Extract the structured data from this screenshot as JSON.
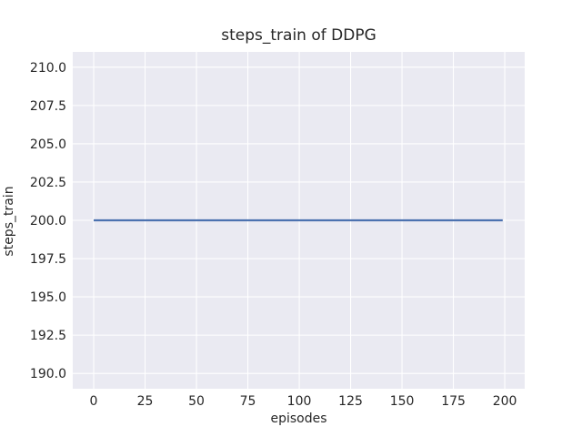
{
  "chart_data": {
    "type": "line",
    "title": "steps_train of DDPG",
    "xlabel": "episodes",
    "ylabel": "steps_train",
    "xlim": [
      -10.18,
      209.7
    ],
    "ylim": [
      189.0,
      211.0
    ],
    "xticks": [
      0,
      25,
      50,
      75,
      100,
      125,
      150,
      175,
      200
    ],
    "xtick_labels": [
      "0",
      "25",
      "50",
      "75",
      "100",
      "125",
      "150",
      "175",
      "200"
    ],
    "yticks": [
      190.0,
      192.5,
      195.0,
      197.5,
      200.0,
      202.5,
      205.0,
      207.5,
      210.0
    ],
    "ytick_labels": [
      "190.0",
      "192.5",
      "195.0",
      "197.5",
      "200.0",
      "202.5",
      "205.0",
      "207.5",
      "210.0"
    ],
    "grid": true,
    "legend": "none",
    "style": "seaborn-darkgrid",
    "series": [
      {
        "name": "steps_train",
        "constant_value": 200,
        "n_points": 200,
        "x": [
          0,
          199
        ],
        "y": [
          200,
          200
        ],
        "color": "#4c72b0"
      }
    ],
    "colors": {
      "figure_background": "#ffffff",
      "axes_background": "#eaeaf2",
      "gridline": "#ffffff",
      "line": "#4c72b0",
      "text": "#262626"
    }
  }
}
